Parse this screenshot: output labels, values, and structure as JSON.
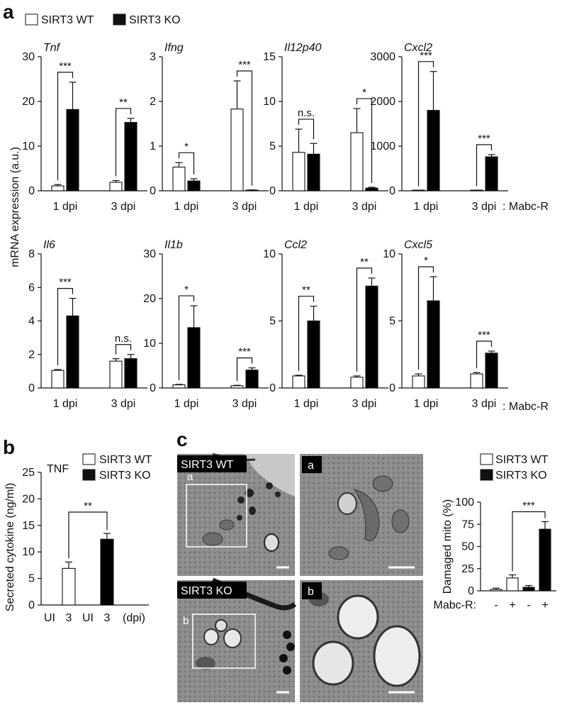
{
  "panel_letters": {
    "a": "a",
    "b": "b",
    "c": "c"
  },
  "legend": {
    "wt": "SIRT3 WT",
    "ko": "SIRT3 KO"
  },
  "colors": {
    "wt": "#ffffff",
    "ko": "#000000",
    "em_bg": "#7a7a7a"
  },
  "shared_ylabel": "mRNA expression (a.u.)",
  "condition_label": ": Mabc-R",
  "chart_data": [
    {
      "id": "tnf",
      "type": "bar",
      "title": "Tnf",
      "categories": [
        "1 dpi",
        "3 dpi"
      ],
      "ylim": [
        0,
        30
      ],
      "yticks": [
        "0",
        "10",
        "20",
        "30"
      ],
      "series": [
        {
          "name": "SIRT3 WT",
          "values": [
            1.1,
            1.9
          ],
          "errors": [
            0.3,
            0.4
          ]
        },
        {
          "name": "SIRT3 KO",
          "values": [
            18.2,
            15.3
          ],
          "errors": [
            6.1,
            0.9
          ]
        }
      ],
      "sig": [
        "***",
        "**"
      ]
    },
    {
      "id": "ifng",
      "type": "bar",
      "title": "Ifng",
      "categories": [
        "1 dpi",
        "3 dpi"
      ],
      "ylim": [
        0,
        3
      ],
      "yticks": [
        "0",
        "1",
        "2",
        "3"
      ],
      "series": [
        {
          "name": "SIRT3 WT",
          "values": [
            0.53,
            1.83
          ],
          "errors": [
            0.1,
            0.63
          ]
        },
        {
          "name": "SIRT3 KO",
          "values": [
            0.22,
            0.01
          ],
          "errors": [
            0.05,
            0.01
          ]
        }
      ],
      "sig": [
        "*",
        "***"
      ]
    },
    {
      "id": "il12p40",
      "type": "bar",
      "title": "Il12p40",
      "categories": [
        "1 dpi",
        "3 dpi"
      ],
      "ylim": [
        0,
        15
      ],
      "yticks": [
        "0",
        "5",
        "10",
        "15"
      ],
      "series": [
        {
          "name": "SIRT3 WT",
          "values": [
            4.3,
            6.5
          ],
          "errors": [
            2.6,
            2.7
          ]
        },
        {
          "name": "SIRT3 KO",
          "values": [
            4.1,
            0.3
          ],
          "errors": [
            1.2,
            0.1
          ]
        }
      ],
      "sig": [
        "n.s.",
        "*"
      ]
    },
    {
      "id": "cxcl2",
      "type": "bar",
      "title": "Cxcl2",
      "categories": [
        "1 dpi",
        "3 dpi"
      ],
      "ylim": [
        0,
        3000
      ],
      "yticks": [
        "0",
        "1000",
        "2000",
        "3000"
      ],
      "series": [
        {
          "name": "SIRT3 WT",
          "values": [
            5,
            5
          ],
          "errors": [
            0,
            0
          ]
        },
        {
          "name": "SIRT3 KO",
          "values": [
            1800,
            760
          ],
          "errors": [
            870,
            50
          ]
        }
      ],
      "sig": [
        "***",
        "***"
      ]
    },
    {
      "id": "il6",
      "type": "bar",
      "title": "Il6",
      "categories": [
        "1 dpi",
        "3 dpi"
      ],
      "ylim": [
        0,
        8
      ],
      "yticks": [
        "0",
        "2",
        "4",
        "6",
        "8"
      ],
      "series": [
        {
          "name": "SIRT3 WT",
          "values": [
            1.05,
            1.6
          ],
          "errors": [
            0.05,
            0.15
          ]
        },
        {
          "name": "SIRT3 KO",
          "values": [
            4.3,
            1.75
          ],
          "errors": [
            1.05,
            0.25
          ]
        }
      ],
      "sig": [
        "***",
        "n.s."
      ]
    },
    {
      "id": "il1b",
      "type": "bar",
      "title": "Il1b",
      "categories": [
        "1 dpi",
        "3 dpi"
      ],
      "ylim": [
        0,
        30
      ],
      "yticks": [
        "0",
        "10",
        "20",
        "30"
      ],
      "series": [
        {
          "name": "SIRT3 WT",
          "values": [
            0.7,
            0.5
          ],
          "errors": [
            0.1,
            0.1
          ]
        },
        {
          "name": "SIRT3 KO",
          "values": [
            13.5,
            4.0
          ],
          "errors": [
            4.9,
            0.5
          ]
        }
      ],
      "sig": [
        "*",
        "***"
      ]
    },
    {
      "id": "ccl2",
      "type": "bar",
      "title": "Ccl2",
      "categories": [
        "1 dpi",
        "3 dpi"
      ],
      "ylim": [
        0,
        10
      ],
      "yticks": [
        "0",
        "5",
        "10"
      ],
      "series": [
        {
          "name": "SIRT3 WT",
          "values": [
            0.9,
            0.8
          ],
          "errors": [
            0.05,
            0.1
          ]
        },
        {
          "name": "SIRT3 KO",
          "values": [
            5.0,
            7.6
          ],
          "errors": [
            1.1,
            0.6
          ]
        }
      ],
      "sig": [
        "**",
        "**"
      ]
    },
    {
      "id": "cxcl5",
      "type": "bar",
      "title": "Cxcl5",
      "categories": [
        "1 dpi",
        "3 dpi"
      ],
      "ylim": [
        0,
        10
      ],
      "yticks": [
        "0",
        "5",
        "10"
      ],
      "series": [
        {
          "name": "SIRT3 WT",
          "values": [
            0.9,
            1.05
          ],
          "errors": [
            0.15,
            0.1
          ]
        },
        {
          "name": "SIRT3 KO",
          "values": [
            6.5,
            2.6
          ],
          "errors": [
            1.8,
            0.15
          ]
        }
      ],
      "sig": [
        "*",
        "***"
      ]
    },
    {
      "id": "tnf_secreted",
      "type": "bar",
      "title": "TNF",
      "ylabel": "Secreted cytokine (ng/ml)",
      "xunit": "(dpi)",
      "categories": [
        "UI",
        "3",
        "UI",
        "3"
      ],
      "ylim": [
        0,
        25
      ],
      "yticks": [
        "0",
        "5",
        "10",
        "15",
        "20",
        "25"
      ],
      "values": [
        0,
        6.9,
        0,
        12.4
      ],
      "errors": [
        0,
        1.2,
        0,
        1.1
      ],
      "fills": [
        "wt",
        "wt",
        "ko",
        "ko"
      ],
      "sig": "**"
    },
    {
      "id": "damaged_mito",
      "type": "bar",
      "ylabel": "Damaged mito (%)",
      "xlabel": "Mabc-R:",
      "categories": [
        "-",
        "+",
        "-",
        "+"
      ],
      "ylim": [
        0,
        100
      ],
      "yticks": [
        "0",
        "25",
        "50",
        "75",
        "100"
      ],
      "values": [
        1.5,
        14.5,
        4,
        69.5
      ],
      "errors": [
        1.5,
        3.5,
        2,
        8.5
      ],
      "fills": [
        "wt",
        "wt",
        "ko",
        "ko"
      ],
      "sig": "***"
    }
  ],
  "em": {
    "wt_label": "SIRT3 WT",
    "ko_label": "SIRT3 KO",
    "wt_inset": "a",
    "ko_inset": "b",
    "wt_zoom": "a",
    "ko_zoom": "b"
  }
}
